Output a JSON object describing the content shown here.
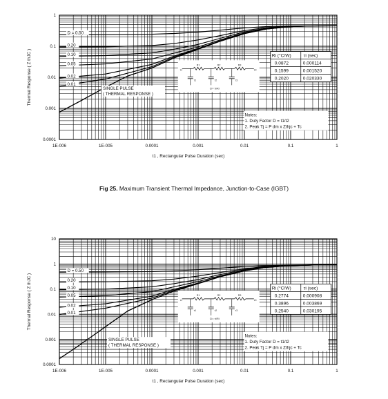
{
  "caption": {
    "label": "Fig 25.",
    "text": "Maximum Transient Thermal Impedance, Junction-to-Case (IGBT)"
  },
  "chart_data": [
    {
      "type": "line",
      "xscale": "log",
      "yscale": "log",
      "xlim": [
        1e-06,
        1
      ],
      "ylim": [
        0.0001,
        1
      ],
      "xticks": [
        {
          "value": 1e-06,
          "label": "1E-006"
        },
        {
          "value": 1e-05,
          "label": "1E-005"
        },
        {
          "value": 0.0001,
          "label": "0.0001"
        },
        {
          "value": 0.001,
          "label": "0.001"
        },
        {
          "value": 0.01,
          "label": "0.01"
        },
        {
          "value": 0.1,
          "label": "0.1"
        },
        {
          "value": 1,
          "label": "1"
        }
      ],
      "yticks": [
        {
          "value": 0.0001,
          "label": "0.0001"
        },
        {
          "value": 0.001,
          "label": "0.001"
        },
        {
          "value": 0.01,
          "label": "0.01"
        },
        {
          "value": 0.1,
          "label": "0.1"
        },
        {
          "value": 1,
          "label": "1"
        }
      ],
      "ylabel": "Thermal Response ( Z thJC )",
      "xlabel": "t1 , Rectangular Pulse Duration (sec)",
      "grid": true,
      "series": [
        {
          "name": "D = 0.50",
          "x": [
            1e-06,
            1e-05,
            0.0001,
            0.0003,
            0.001,
            0.003,
            0.01,
            0.03,
            0.1,
            0.3,
            1
          ],
          "y": [
            0.235,
            0.236,
            0.243,
            0.258,
            0.285,
            0.33,
            0.39,
            0.43,
            0.45,
            0.455,
            0.455
          ]
        },
        {
          "name": "0.20",
          "x": [
            1e-06,
            1e-05,
            0.0001,
            0.0003,
            0.001,
            0.003,
            0.01,
            0.03,
            0.1,
            0.3,
            1
          ],
          "y": [
            0.094,
            0.096,
            0.106,
            0.122,
            0.16,
            0.22,
            0.32,
            0.4,
            0.44,
            0.45,
            0.455
          ]
        },
        {
          "name": "0.10",
          "x": [
            1e-06,
            1e-05,
            0.0001,
            0.0003,
            0.001,
            0.003,
            0.01,
            0.03,
            0.1,
            0.3,
            1
          ],
          "y": [
            0.047,
            0.05,
            0.061,
            0.08,
            0.115,
            0.18,
            0.29,
            0.38,
            0.43,
            0.45,
            0.455
          ]
        },
        {
          "name": "0.05",
          "x": [
            1e-06,
            1e-05,
            0.0001,
            0.0003,
            0.001,
            0.003,
            0.01,
            0.03,
            0.1,
            0.3,
            1
          ],
          "y": [
            0.0235,
            0.027,
            0.039,
            0.06,
            0.095,
            0.16,
            0.27,
            0.37,
            0.43,
            0.45,
            0.455
          ]
        },
        {
          "name": "0.02",
          "x": [
            1e-06,
            1e-05,
            0.0001,
            0.0003,
            0.001,
            0.003,
            0.01,
            0.03,
            0.1,
            0.3,
            1
          ],
          "y": [
            0.0095,
            0.0128,
            0.026,
            0.048,
            0.085,
            0.15,
            0.26,
            0.36,
            0.43,
            0.45,
            0.455
          ]
        },
        {
          "name": "0.01",
          "x": [
            1e-06,
            1e-05,
            0.0001,
            0.0003,
            0.001,
            0.003,
            0.01,
            0.03,
            0.1,
            0.3,
            1
          ],
          "y": [
            0.0052,
            0.0088,
            0.022,
            0.045,
            0.082,
            0.148,
            0.26,
            0.36,
            0.43,
            0.45,
            0.455
          ]
        },
        {
          "name": "SINGLE PULSE",
          "x": [
            1e-06,
            3e-06,
            1e-05,
            3e-05,
            0.0001,
            0.0003,
            0.001,
            0.003,
            0.01,
            0.03,
            0.1,
            0.3,
            1
          ],
          "y": [
            0.00075,
            0.0018,
            0.0048,
            0.011,
            0.02,
            0.042,
            0.08,
            0.145,
            0.255,
            0.36,
            0.43,
            0.45,
            0.455
          ]
        }
      ],
      "curve_labels": [
        {
          "text": "D = 0.50",
          "series": 0
        },
        {
          "text": "0.20",
          "series": 1
        },
        {
          "text": "0.10",
          "series": 2
        },
        {
          "text": "0.05",
          "series": 3
        },
        {
          "text": "0.02",
          "series": 4
        },
        {
          "text": "0.01",
          "series": 5
        }
      ],
      "single_pulse_label": [
        "SINGLE PULSE",
        "( THERMAL RESPONSE )"
      ],
      "rc_table": {
        "headers": [
          "Ri (°C/W)",
          "τi (sec)"
        ],
        "rows": [
          [
            "0.0872",
            "0.000114"
          ],
          [
            "0.1599",
            "0.001520"
          ],
          [
            "0.2020",
            "0.020330"
          ]
        ]
      },
      "circuit": {
        "ci_label": "Ci= τi/Ri",
        "r_labels": [
          "R1",
          "R2",
          "R3"
        ],
        "tau_labels": [
          "τ1",
          "τ2",
          "τ3"
        ],
        "tj_label": "τJ",
        "tc_label": "τC"
      },
      "notes": [
        "Notes:",
        "1. Duty Factor D = t1/t2",
        "2. Peak Tj = P dm x Zthjc + Tc"
      ]
    },
    {
      "type": "line",
      "xscale": "log",
      "yscale": "log",
      "xlim": [
        1e-06,
        1
      ],
      "ylim": [
        0.0001,
        10
      ],
      "xticks": [
        {
          "value": 1e-06,
          "label": "1E-006"
        },
        {
          "value": 1e-05,
          "label": "1E-005"
        },
        {
          "value": 0.0001,
          "label": "0.0001"
        },
        {
          "value": 0.001,
          "label": "0.001"
        },
        {
          "value": 0.01,
          "label": "0.01"
        },
        {
          "value": 0.1,
          "label": "0.1"
        },
        {
          "value": 1,
          "label": "1"
        }
      ],
      "yticks": [
        {
          "value": 0.0001,
          "label": "0.0001"
        },
        {
          "value": 0.001,
          "label": "0.001"
        },
        {
          "value": 0.01,
          "label": "0.01"
        },
        {
          "value": 0.1,
          "label": "0.1"
        },
        {
          "value": 1,
          "label": "1"
        },
        {
          "value": 10,
          "label": "10"
        }
      ],
      "ylabel": "Thermal Response ( Z thJC )",
      "xlabel": "t1 , Rectangular Pulse Duration (sec)",
      "grid": true,
      "series": [
        {
          "name": "D = 0.50",
          "x": [
            1e-06,
            1e-05,
            0.0001,
            0.0003,
            0.001,
            0.003,
            0.01,
            0.03,
            0.1,
            0.3,
            1
          ],
          "y": [
            0.47,
            0.48,
            0.5,
            0.53,
            0.59,
            0.68,
            0.79,
            0.86,
            0.9,
            0.92,
            0.92
          ]
        },
        {
          "name": "0.20",
          "x": [
            1e-06,
            1e-05,
            0.0001,
            0.0003,
            0.001,
            0.003,
            0.01,
            0.03,
            0.1,
            0.3,
            1
          ],
          "y": [
            0.19,
            0.195,
            0.215,
            0.25,
            0.33,
            0.46,
            0.64,
            0.8,
            0.88,
            0.91,
            0.92
          ]
        },
        {
          "name": "0.10",
          "x": [
            1e-06,
            1e-05,
            0.0001,
            0.0003,
            0.001,
            0.003,
            0.01,
            0.03,
            0.1,
            0.3,
            1
          ],
          "y": [
            0.095,
            0.1,
            0.124,
            0.165,
            0.24,
            0.38,
            0.59,
            0.77,
            0.87,
            0.91,
            0.92
          ]
        },
        {
          "name": "0.05",
          "x": [
            1e-06,
            1e-05,
            0.0001,
            0.0003,
            0.001,
            0.003,
            0.01,
            0.03,
            0.1,
            0.3,
            1
          ],
          "y": [
            0.048,
            0.055,
            0.079,
            0.123,
            0.2,
            0.34,
            0.56,
            0.75,
            0.87,
            0.91,
            0.92
          ]
        },
        {
          "name": "0.02",
          "x": [
            1e-06,
            1e-05,
            0.0001,
            0.0003,
            0.001,
            0.003,
            0.01,
            0.03,
            0.1,
            0.3,
            1
          ],
          "y": [
            0.019,
            0.026,
            0.052,
            0.098,
            0.175,
            0.32,
            0.54,
            0.74,
            0.86,
            0.91,
            0.92
          ]
        },
        {
          "name": "0.01",
          "x": [
            1e-06,
            1e-05,
            0.0001,
            0.0003,
            0.001,
            0.003,
            0.01,
            0.03,
            0.1,
            0.3,
            1
          ],
          "y": [
            0.0098,
            0.0175,
            0.044,
            0.09,
            0.17,
            0.31,
            0.53,
            0.74,
            0.86,
            0.91,
            0.92
          ]
        },
        {
          "name": "SINGLE PULSE",
          "x": [
            1e-06,
            2e-06,
            5e-06,
            1e-05,
            3e-05,
            0.0001,
            0.0003,
            0.001,
            0.003,
            0.01,
            0.03,
            0.1,
            0.3,
            1
          ],
          "y": [
            0.00017,
            0.0004,
            0.0013,
            0.0032,
            0.0135,
            0.038,
            0.083,
            0.165,
            0.31,
            0.53,
            0.74,
            0.86,
            0.91,
            0.92
          ]
        }
      ],
      "curve_labels": [
        {
          "text": "D = 0.50",
          "series": 0
        },
        {
          "text": "0.20",
          "series": 1
        },
        {
          "text": "0.10",
          "series": 2
        },
        {
          "text": "0.05",
          "series": 3
        },
        {
          "text": "0.02",
          "series": 4
        },
        {
          "text": "0.01",
          "series": 5
        }
      ],
      "single_pulse_label": [
        "SINGLE PULSE",
        "( THERMAL RESPONSE )"
      ],
      "rc_table": {
        "headers": [
          "Ri (°C/W)",
          "τi (sec)"
        ],
        "rows": [
          [
            "0.2774",
            "0.000908"
          ],
          [
            "0.3896",
            "0.003869"
          ],
          [
            "0.2540",
            "0.030195"
          ]
        ]
      },
      "circuit": {
        "ci_label": "Ci= τi/Ri",
        "r_labels": [
          "R1",
          "R2",
          "R3"
        ],
        "tau_labels": [
          "τ1",
          "τ2",
          "τ3"
        ],
        "tj_label": "τJ",
        "tc_label": "τC"
      },
      "notes": [
        "Notes:",
        "1. Duty Factor D = t1/t2",
        "2. Peak Tj = P dm x Zthjc + Tc"
      ]
    }
  ]
}
